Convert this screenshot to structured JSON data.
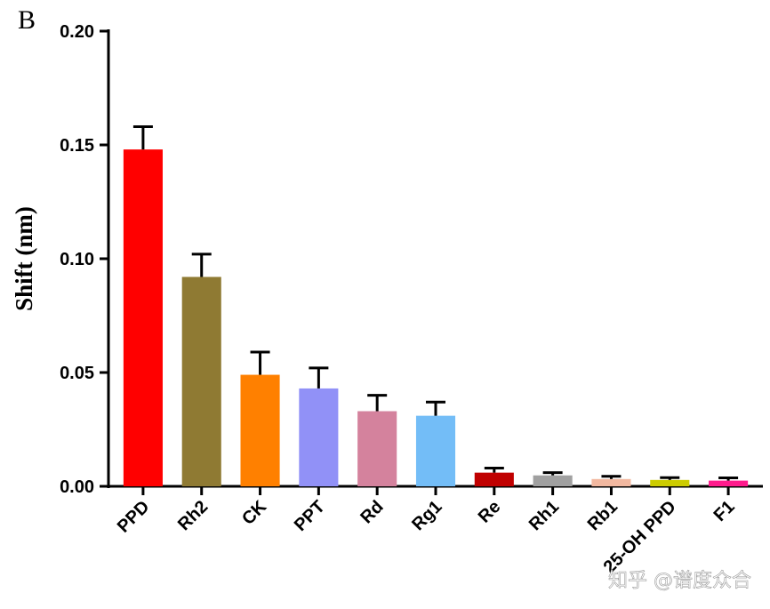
{
  "panel_label": "B",
  "watermark": "知乎 @谱度众合",
  "chart_data": {
    "type": "bar",
    "title": "",
    "xlabel": "",
    "ylabel": "Shift (nm)",
    "ylim": [
      0,
      0.2
    ],
    "yticks": [
      "0.00",
      "0.05",
      "0.10",
      "0.15",
      "0.20"
    ],
    "grid": false,
    "categories": [
      "PPD",
      "Rh2",
      "CK",
      "PPT",
      "Rd",
      "Rg1",
      "Re",
      "Rh1",
      "Rb1",
      "25-OH PPD",
      "F1"
    ],
    "values": [
      0.148,
      0.092,
      0.049,
      0.043,
      0.033,
      0.031,
      0.006,
      0.0048,
      0.0032,
      0.0028,
      0.0025
    ],
    "errors": [
      0.01,
      0.01,
      0.01,
      0.009,
      0.007,
      0.006,
      0.002,
      0.0012,
      0.0012,
      0.001,
      0.0012
    ],
    "colors": [
      "#ff0000",
      "#8f7a33",
      "#ff8000",
      "#9191f7",
      "#d4829d",
      "#73bdf7",
      "#c00000",
      "#a0a0a0",
      "#f2b8a0",
      "#cccc00",
      "#ff1a8c"
    ]
  }
}
